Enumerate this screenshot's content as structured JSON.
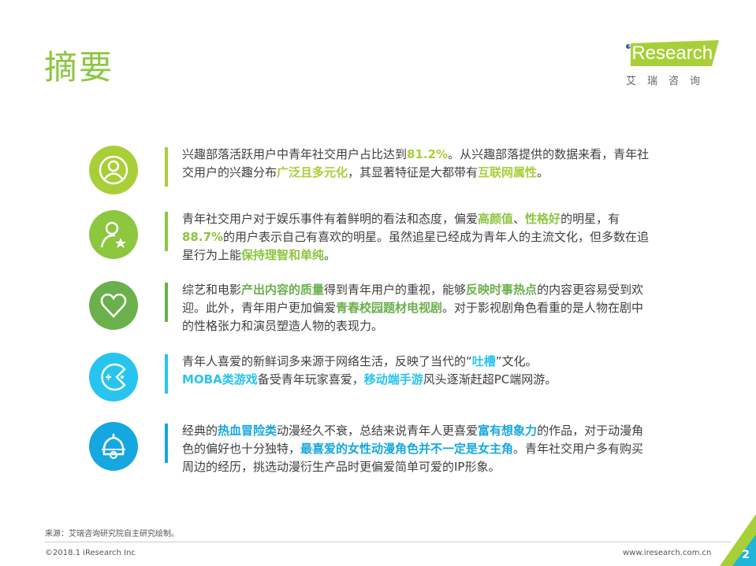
{
  "header": {
    "title": "摘要",
    "logo_brand": "iResearch",
    "logo_cn": "艾瑞咨询"
  },
  "colors": {
    "lime": "#a8cf38",
    "green": "#8dc63f",
    "dark_green": "#6ab04c",
    "cyan": "#27c4f0",
    "blue": "#15a7df",
    "text": "#404040"
  },
  "items": [
    {
      "icon": "user-circle-icon",
      "color": "#a8cf38",
      "segments": [
        {
          "t": "兴趣部落活跃用户中青年社交用户占比达到"
        },
        {
          "t": "81.2%",
          "h": 1
        },
        {
          "t": "。从兴趣部落提供的数据来看，青年社交用户的兴趣分布"
        },
        {
          "t": "广泛且多元化",
          "h": 1
        },
        {
          "t": "，其显著特征是大都带有"
        },
        {
          "t": "互联网属性",
          "h": 1
        },
        {
          "t": "。"
        }
      ]
    },
    {
      "icon": "user-star-icon",
      "color": "#8dc63f",
      "segments": [
        {
          "t": "青年社交用户对于娱乐事件有着鲜明的看法和态度，偏爱"
        },
        {
          "t": "高颜值",
          "h": 1
        },
        {
          "t": "、"
        },
        {
          "t": "性格好",
          "h": 1
        },
        {
          "t": "的明星，有"
        },
        {
          "t": "88.7%",
          "h": 1
        },
        {
          "t": "的用户表示自己有喜欢的明星。虽然追星已经成为青年人的主流文化，但多数在追星行为上能"
        },
        {
          "t": "保持理智和单纯",
          "h": 1
        },
        {
          "t": "。"
        }
      ]
    },
    {
      "icon": "heart-icon",
      "color": "#6ab04c",
      "segments": [
        {
          "t": "综艺和电影"
        },
        {
          "t": "产出内容的质量",
          "h": 1
        },
        {
          "t": "得到青年用户的重视，能够"
        },
        {
          "t": "反映时事热点",
          "h": 1
        },
        {
          "t": "的内容更容易受到欢迎。此外，青年用户更加偏爱"
        },
        {
          "t": "青春校园题材电视剧",
          "h": 1
        },
        {
          "t": "。对于影视剧角色看重的是人物在剧中的性格张力和演员塑造人物的表现力。"
        }
      ]
    },
    {
      "icon": "game-pacman-icon",
      "color": "#27c4f0",
      "segments": [
        {
          "t": "青年人喜爱的新鲜词多来源于网络生活，反映了当代的“"
        },
        {
          "t": "吐槽",
          "h": 1
        },
        {
          "t": "”文化。"
        },
        {
          "t": "MOBA类游戏",
          "h": 1,
          "br": 1
        },
        {
          "t": "备受青年玩家喜爱，"
        },
        {
          "t": "移动端手游",
          "h": 1
        },
        {
          "t": "风头逐渐赶超PC端网游。"
        }
      ]
    },
    {
      "icon": "bell-icon",
      "color": "#15a7df",
      "segments": [
        {
          "t": "经典的"
        },
        {
          "t": "热血冒险类",
          "h": 1
        },
        {
          "t": "动漫经久不衰，总结来说青年人更喜爱"
        },
        {
          "t": "富有想象力",
          "h": 1
        },
        {
          "t": "的作品，对于动漫角色的偏好也十分独特，"
        },
        {
          "t": "最喜爱的女性动漫角色并不一定是女主角",
          "h": 1
        },
        {
          "t": "。青年社交用户多有购买周边的经历，挑选动漫衍生产品时更偏爱简单可爱的IP形象。"
        }
      ]
    }
  ],
  "footer": {
    "source": "来源：艾瑞咨询研究院自主研究绘制。",
    "copyright": "©2018.1 iResearch Inc",
    "url": "www.iresearch.com.cn",
    "page": "2"
  }
}
